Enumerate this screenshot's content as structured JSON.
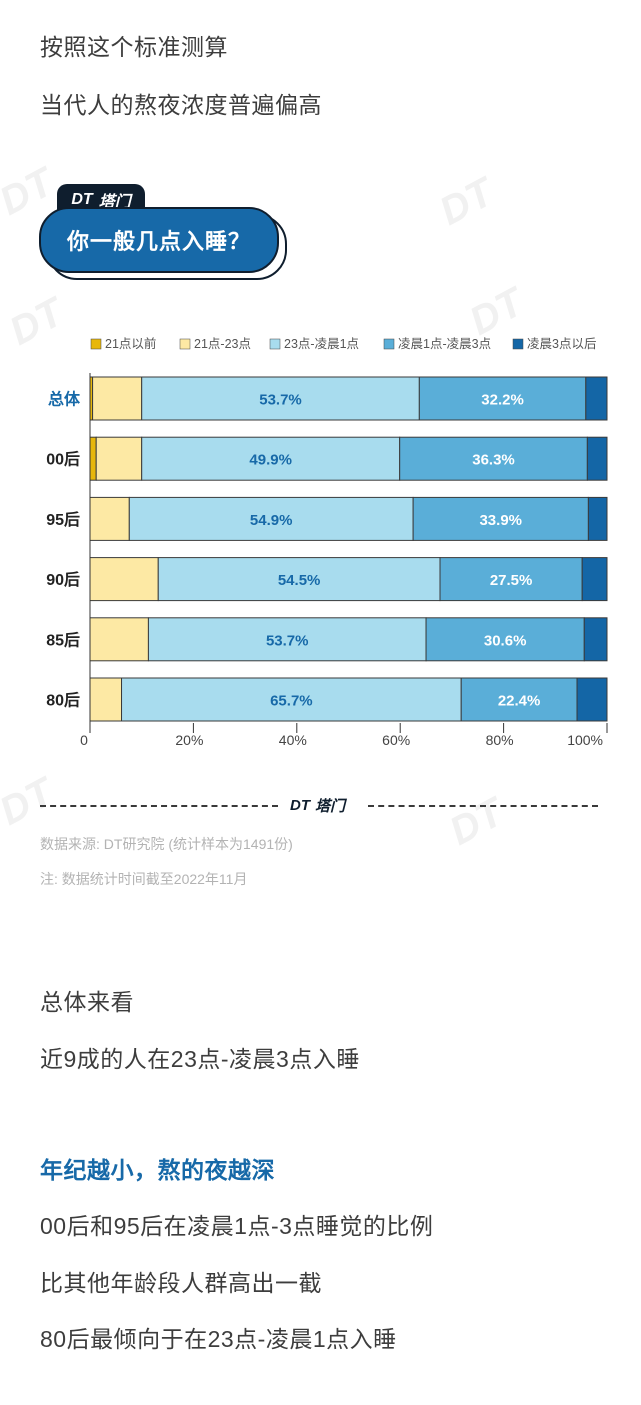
{
  "intro": {
    "line1": "按照这个标准测算",
    "line2": "当代人的熬夜浓度普遍偏高"
  },
  "brand": {
    "logo_text": "DT",
    "logo_cn": "塔门"
  },
  "chart_title": "你一般几点入睡？",
  "colors": {
    "accent": "#1769a8",
    "dark": "#0f1e2e",
    "series": [
      "#e7b70c",
      "#fde9a4",
      "#a8dcee",
      "#5aaed8",
      "#1466a6"
    ]
  },
  "chart_data": {
    "type": "bar",
    "orientation": "horizontal",
    "stacked": true,
    "title": "你一般几点入睡？",
    "categories": [
      "总体",
      "00后",
      "95后",
      "90后",
      "85后",
      "80后"
    ],
    "series": [
      {
        "name": "21点以前",
        "values": [
          0.5,
          1.2,
          0,
          0,
          0,
          0
        ]
      },
      {
        "name": "21点-23点",
        "values": [
          9.5,
          8.8,
          7.6,
          13.2,
          11.3,
          6.1
        ]
      },
      {
        "name": "23点-凌晨1点",
        "values": [
          53.7,
          49.9,
          54.9,
          54.5,
          53.7,
          65.7
        ]
      },
      {
        "name": "凌晨1点-凌晨3点",
        "values": [
          32.2,
          36.3,
          33.9,
          27.5,
          30.6,
          22.4
        ]
      },
      {
        "name": "凌晨3点以后",
        "values": [
          4.1,
          3.8,
          3.6,
          4.8,
          4.4,
          5.8
        ]
      }
    ],
    "value_labels": {
      "23点-凌晨1点": [
        "53.7%",
        "49.9%",
        "54.9%",
        "54.5%",
        "53.7%",
        "65.7%"
      ],
      "凌晨1点-凌晨3点": [
        "32.2%",
        "36.3%",
        "33.9%",
        "27.5%",
        "30.6%",
        "22.4%"
      ]
    },
    "x_ticks": [
      "0",
      "20%",
      "40%",
      "60%",
      "80%",
      "100%"
    ],
    "xlim": [
      0,
      100
    ],
    "legend_position": "top"
  },
  "source": {
    "line1": "数据来源: DT研究院 (统计样本为1491份)",
    "line2": "注: 数据统计时间截至2022年11月"
  },
  "outro": {
    "p1": "总体来看",
    "p2": "近9成的人在23点-凌晨3点入睡",
    "heading": "年纪越小，熬的夜越深",
    "p3": "00后和95后在凌晨1点-3点睡觉的比例",
    "p4": "比其他年龄段人群高出一截",
    "p5": "80后最倾向于在23点-凌晨1点入睡"
  }
}
